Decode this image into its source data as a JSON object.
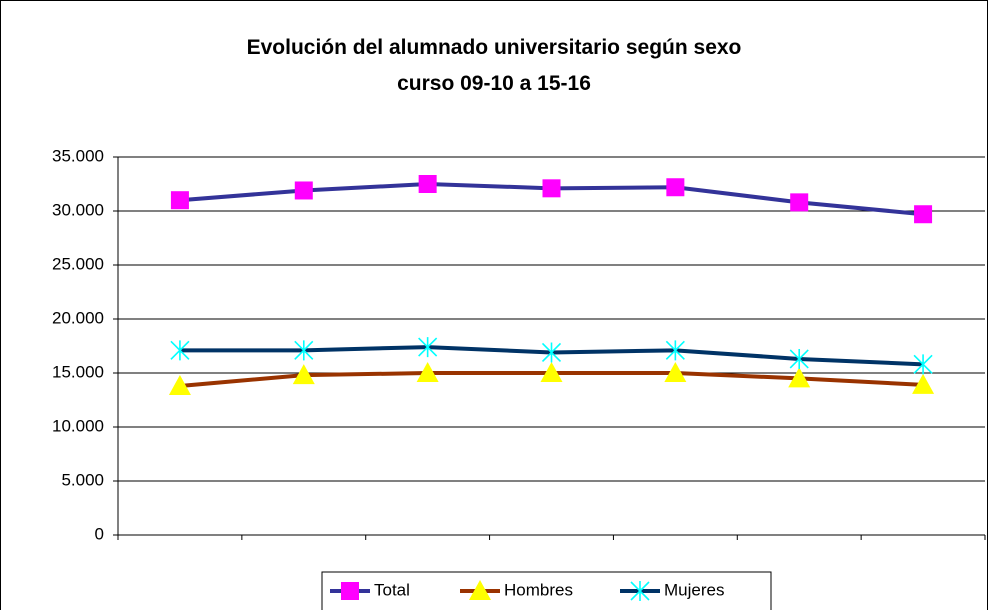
{
  "chart_data": {
    "type": "line",
    "title": "Evolución del alumnado universitario según sexo curso 09-10 a 15-16",
    "categories": [
      null,
      null,
      null,
      null,
      null,
      null,
      null
    ],
    "series": [
      {
        "name": "Total",
        "color": "#333399",
        "marker": "square",
        "marker_color": "#ff00ff",
        "values": [
          31000,
          31900,
          32500,
          32100,
          32200,
          30800,
          29700
        ]
      },
      {
        "name": "Hombres",
        "color": "#993300",
        "marker": "triangle",
        "marker_color": "#ffff00",
        "values": [
          13800,
          14800,
          15000,
          15000,
          15000,
          14500,
          13900
        ]
      },
      {
        "name": "Mujeres",
        "color": "#003366",
        "marker": "star",
        "marker_color": "#00ffff",
        "values": [
          17100,
          17100,
          17400,
          16900,
          17100,
          16300,
          15800
        ]
      }
    ],
    "ylim": [
      0,
      35000
    ],
    "yticks": [
      0,
      {
        "value": 5000,
        "label": "5.000"
      },
      {
        "value": 10000,
        "label": "10.000"
      },
      {
        "value": 15000,
        "label": "15.000"
      },
      {
        "value": 20000,
        "label": "20.000"
      },
      {
        "value": 25000,
        "label": "25.000"
      },
      {
        "value": 30000,
        "label": "30.000"
      },
      {
        "value": 35000,
        "label": "35.000"
      }
    ],
    "grid": true,
    "legend": "bottom"
  }
}
